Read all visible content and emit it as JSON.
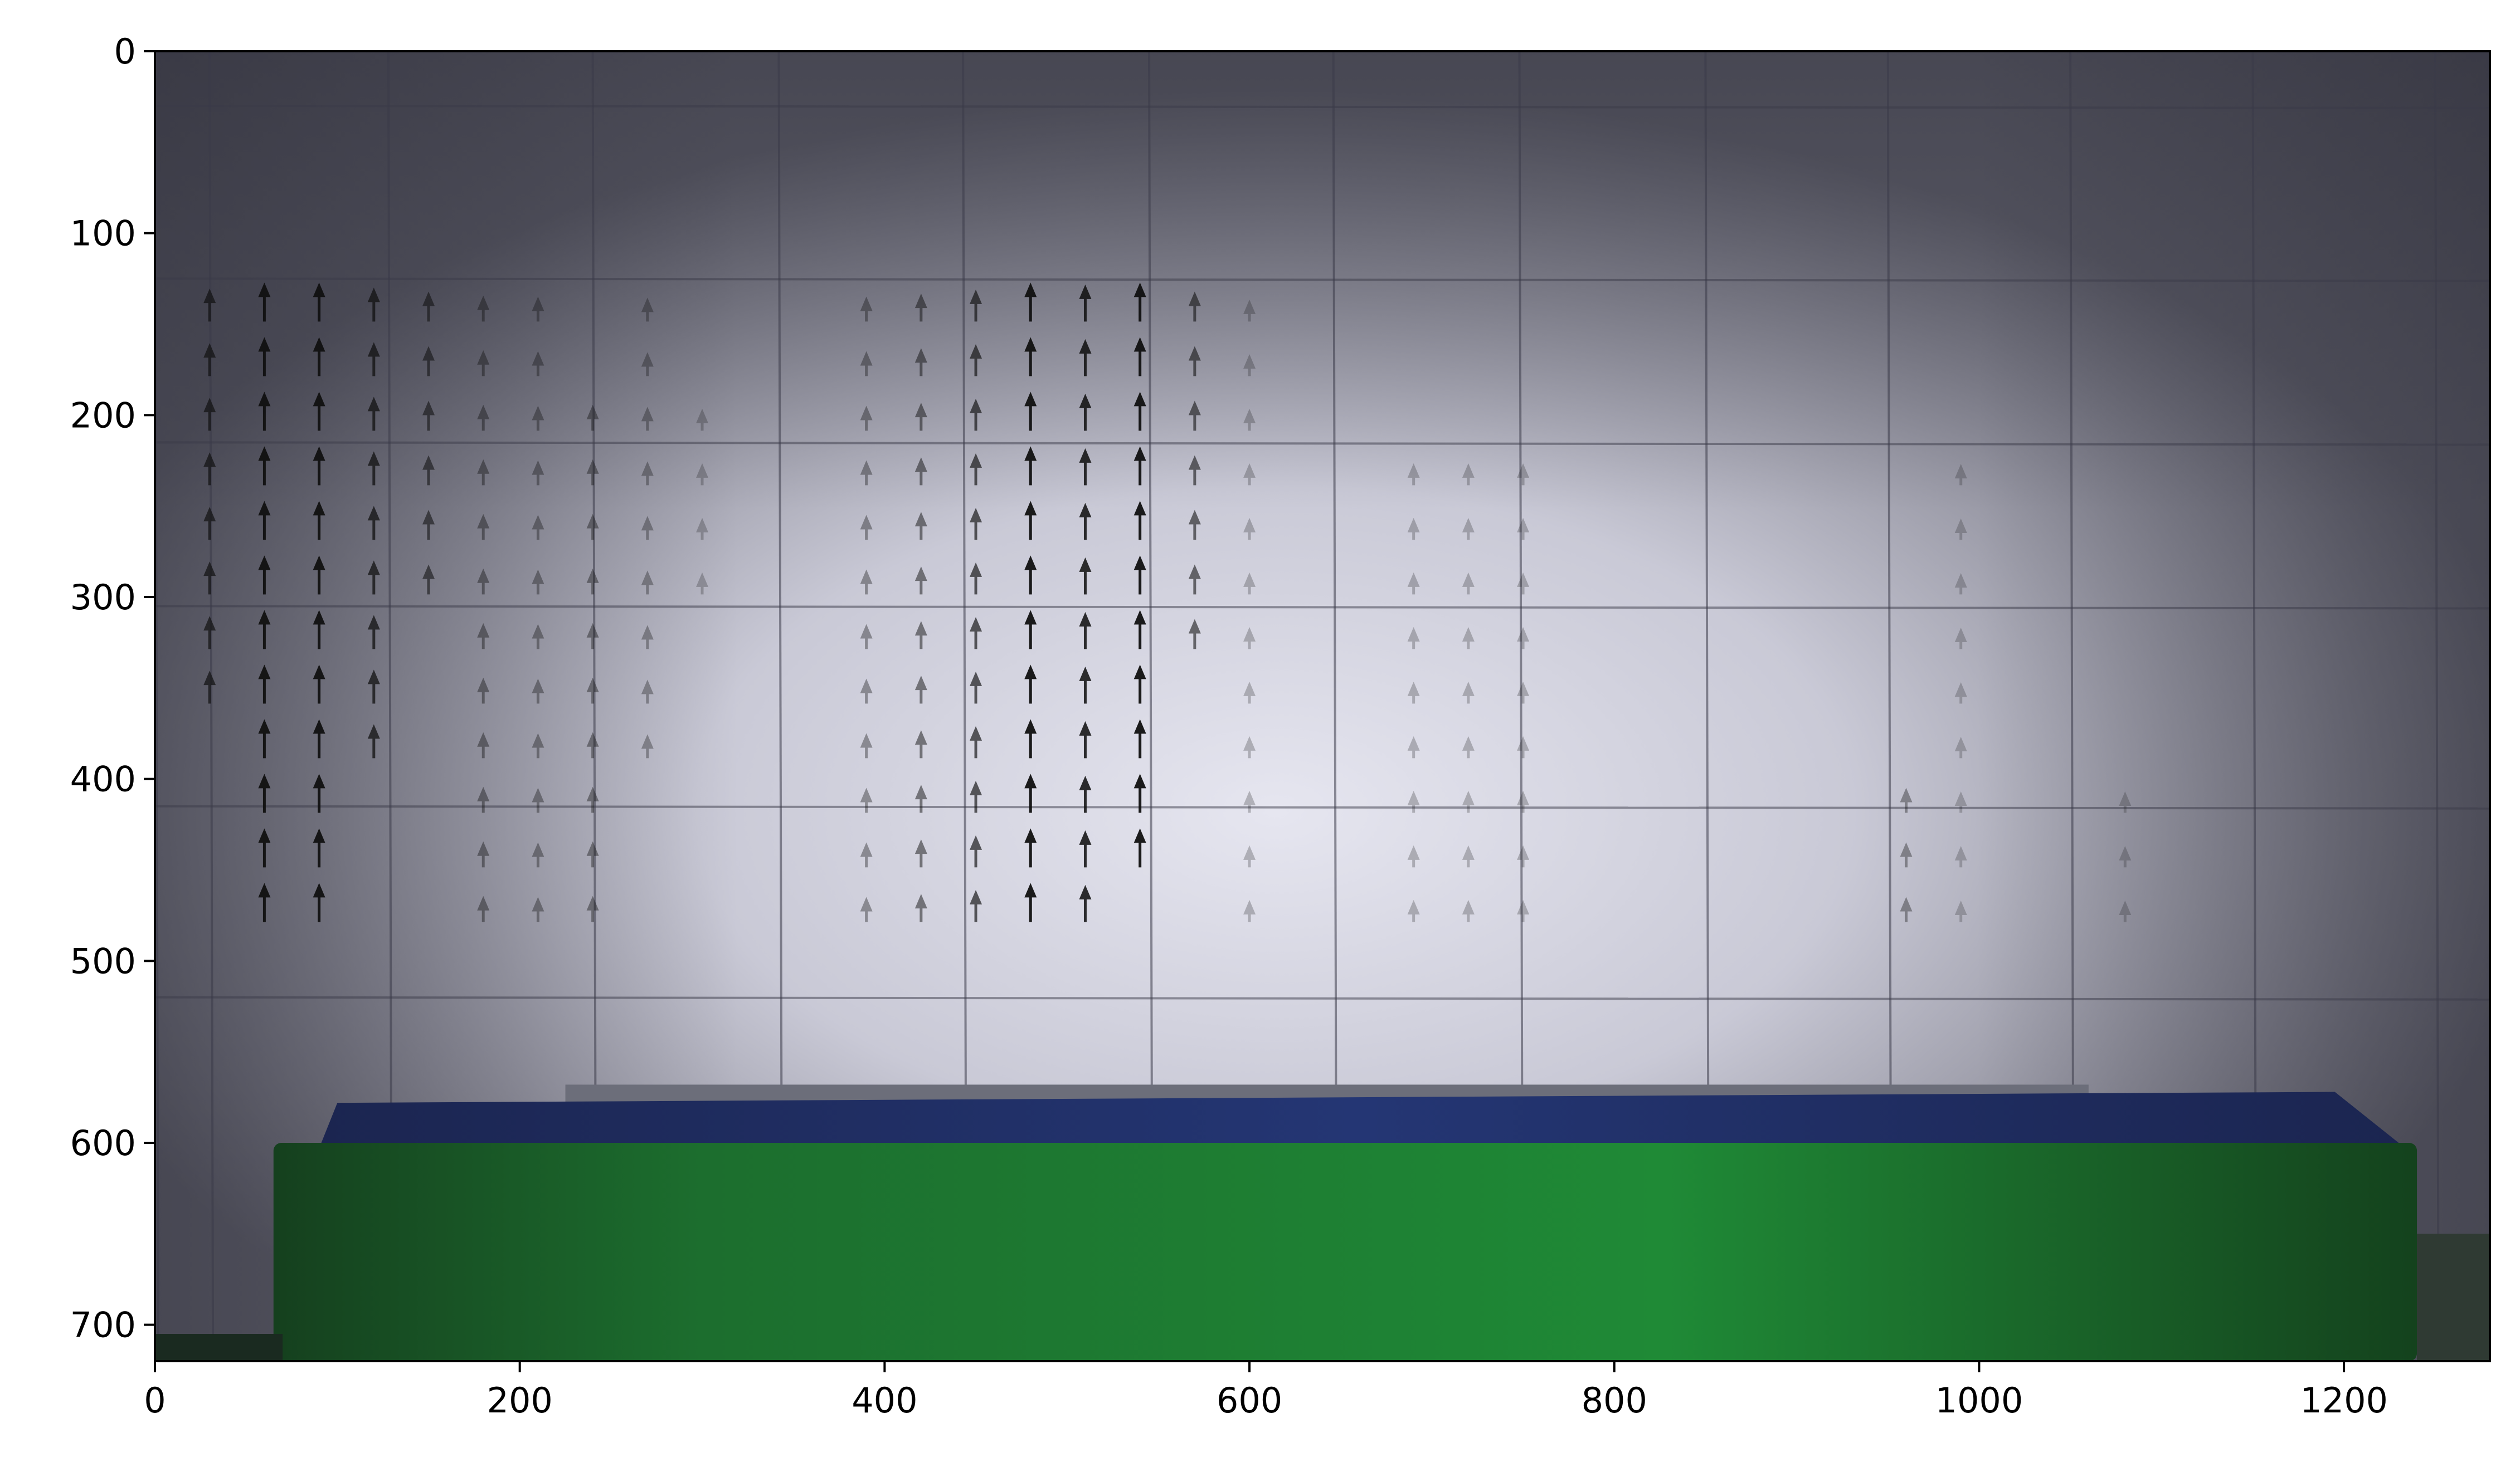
{
  "chart_data": {
    "type": "quiver",
    "background": "image",
    "xlim": [
      0,
      1280
    ],
    "ylim": [
      720,
      0
    ],
    "x_ticks": [
      0,
      200,
      400,
      600,
      800,
      1000,
      1200
    ],
    "y_ticks": [
      0,
      100,
      200,
      300,
      400,
      500,
      600,
      700
    ],
    "x_tick_labels": [
      "0",
      "200",
      "400",
      "600",
      "800",
      "1000",
      "1200"
    ],
    "y_tick_labels": [
      "0",
      "100",
      "200",
      "300",
      "400",
      "500",
      "600",
      "700"
    ],
    "title": "",
    "xlabel": "",
    "ylabel": "",
    "grid_x": [
      0,
      30,
      128,
      240,
      342,
      443,
      545,
      646,
      748,
      850,
      950,
      1050,
      1150,
      1250
    ],
    "grid_y": [
      30,
      125,
      215,
      305,
      415,
      520
    ],
    "arrow_color": "#111111",
    "columns": [
      {
        "x": 30,
        "y_start": 140,
        "y_end": 350,
        "strength": 0.7
      },
      {
        "x": 60,
        "y_start": 140,
        "y_end": 470,
        "strength": 1.0
      },
      {
        "x": 90,
        "y_start": 140,
        "y_end": 470,
        "strength": 1.0
      },
      {
        "x": 120,
        "y_start": 140,
        "y_end": 400,
        "strength": 0.75
      },
      {
        "x": 150,
        "y_start": 140,
        "y_end": 290,
        "strength": 0.55
      },
      {
        "x": 180,
        "y_start": 140,
        "y_end": 470,
        "strength": 0.35
      },
      {
        "x": 210,
        "y_start": 140,
        "y_end": 470,
        "strength": 0.3
      },
      {
        "x": 240,
        "y_start": 200,
        "y_end": 470,
        "strength": 0.35
      },
      {
        "x": 270,
        "y_start": 140,
        "y_end": 400,
        "strength": 0.25
      },
      {
        "x": 300,
        "y_start": 200,
        "y_end": 290,
        "strength": 0.15
      },
      {
        "x": 390,
        "y_start": 140,
        "y_end": 470,
        "strength": 0.3
      },
      {
        "x": 420,
        "y_start": 140,
        "y_end": 470,
        "strength": 0.45
      },
      {
        "x": 450,
        "y_start": 140,
        "y_end": 470,
        "strength": 0.65
      },
      {
        "x": 480,
        "y_start": 140,
        "y_end": 470,
        "strength": 1.0
      },
      {
        "x": 510,
        "y_start": 140,
        "y_end": 470,
        "strength": 0.9
      },
      {
        "x": 540,
        "y_start": 140,
        "y_end": 440,
        "strength": 1.0
      },
      {
        "x": 570,
        "y_start": 140,
        "y_end": 320,
        "strength": 0.55
      },
      {
        "x": 600,
        "y_start": 140,
        "y_end": 470,
        "strength": 0.15
      },
      {
        "x": 690,
        "y_start": 230,
        "y_end": 470,
        "strength": 0.15
      },
      {
        "x": 720,
        "y_start": 230,
        "y_end": 470,
        "strength": 0.15
      },
      {
        "x": 750,
        "y_start": 230,
        "y_end": 470,
        "strength": 0.15
      },
      {
        "x": 960,
        "y_start": 410,
        "y_end": 470,
        "strength": 0.3
      },
      {
        "x": 990,
        "y_start": 230,
        "y_end": 470,
        "strength": 0.12
      },
      {
        "x": 1080,
        "y_start": 410,
        "y_end": 470,
        "strength": 0.12
      }
    ]
  }
}
